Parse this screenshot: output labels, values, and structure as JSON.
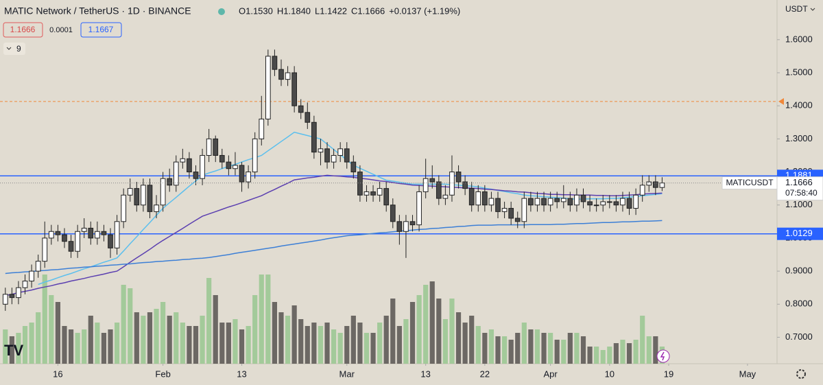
{
  "chart_data": {
    "type": "candlestick",
    "title": "MATIC Network / TetherUS · 1D · BINANCE",
    "header_values": [
      {
        "value": 1.153,
        "label": "O1.1530"
      },
      {
        "value": 1.184,
        "label": "H1.1840"
      },
      {
        "value": 1.1422,
        "label": "L1.1422"
      },
      {
        "value": 1.1666,
        "label": "C1.1666"
      },
      {
        "value": 0.0137,
        "label": "+0.0137 (+1.19%)"
      }
    ],
    "bid": 1.1666,
    "spread": 0.0001,
    "ask": 1.1667,
    "indicator_count": 9,
    "currency": "USDT",
    "symbol": "MATICUSDT",
    "last_price": 1.1666,
    "countdown": "07:58:40",
    "ylim": [
      0.62,
      1.72
    ],
    "yticks": [
      {
        "value": 0.7,
        "label": "0.7000"
      },
      {
        "value": 0.8,
        "label": "0.8000"
      },
      {
        "value": 0.9,
        "label": "0.9000"
      },
      {
        "value": 1.0,
        "label": "1.0000"
      },
      {
        "value": 1.1,
        "label": "1.1000"
      },
      {
        "value": 1.2,
        "label": "1.2000"
      },
      {
        "value": 1.3,
        "label": "1.3000"
      },
      {
        "value": 1.4,
        "label": "1.4000"
      },
      {
        "value": 1.5,
        "label": "1.5000"
      },
      {
        "value": 1.6,
        "label": "1.6000"
      }
    ],
    "grid": false,
    "up_color": "#ffffff",
    "down_color": "#4a4a4a",
    "volume_up_color": "#9cc893",
    "volume_down_color": "#5f5b58",
    "hlines": [
      {
        "value": 1.1881,
        "color": "#2962ff"
      },
      {
        "value": 1.0129,
        "color": "#2962ff"
      }
    ],
    "alert_line": {
      "value": 1.413,
      "color": "#f0883a"
    },
    "categories": [
      null,
      null,
      null,
      null,
      null,
      null,
      null,
      null,
      "16",
      null,
      null,
      null,
      null,
      null,
      null,
      null,
      null,
      null,
      null,
      null,
      null,
      null,
      null,
      null,
      "Feb",
      null,
      null,
      null,
      null,
      null,
      null,
      null,
      null,
      null,
      null,
      null,
      "13",
      null,
      null,
      null,
      null,
      null,
      null,
      null,
      null,
      null,
      null,
      null,
      null,
      null,
      null,
      null,
      "Mar",
      null,
      null,
      null,
      null,
      null,
      null,
      null,
      null,
      null,
      null,
      null,
      "13",
      null,
      null,
      null,
      null,
      null,
      null,
      null,
      null,
      "22",
      null,
      null,
      null,
      null,
      null,
      null,
      null,
      null,
      null,
      "Apr",
      null,
      null,
      null,
      null,
      null,
      null,
      null,
      null,
      "10",
      null,
      null,
      null,
      null,
      null,
      null,
      null,
      null,
      "19",
      null,
      null,
      null,
      null,
      null,
      null,
      null,
      null,
      null,
      null,
      null,
      "May",
      null,
      null,
      null,
      null
    ],
    "open": [
      0.8,
      0.83,
      0.82,
      0.85,
      0.87,
      0.9,
      0.93,
      1.0,
      1.02,
      1.01,
      0.99,
      0.96,
      1.02,
      1.03,
      1.0,
      1.02,
      1.01,
      0.97,
      1.05,
      1.13,
      1.15,
      1.1,
      1.16,
      1.08,
      1.1,
      1.18,
      1.16,
      1.23,
      1.24,
      1.2,
      1.18,
      1.25,
      1.3,
      1.25,
      1.23,
      1.21,
      1.22,
      1.17,
      1.2,
      1.3,
      1.36,
      1.55,
      1.51,
      1.48,
      1.5,
      1.4,
      1.38,
      1.35,
      1.26,
      1.27,
      1.23,
      1.25,
      1.27,
      1.23,
      1.2,
      1.13,
      1.14,
      1.13,
      1.15,
      1.1,
      1.05,
      1.02,
      1.05,
      1.04,
      1.14,
      1.18,
      1.17,
      1.12,
      1.13,
      1.2,
      1.17,
      1.15,
      1.1,
      1.14,
      1.1,
      1.12,
      1.08,
      1.09,
      1.06,
      1.05,
      1.12,
      1.1,
      1.12,
      1.1,
      1.12,
      1.11,
      1.12,
      1.1,
      1.13,
      1.11,
      1.1,
      1.1,
      1.11,
      1.11,
      1.1,
      1.12,
      1.09,
      1.13,
      1.16,
      1.17,
      1.153,
      null,
      null,
      null,
      null,
      null,
      null,
      null,
      null,
      null,
      null,
      null,
      null,
      null,
      null,
      null,
      null,
      null
    ],
    "high": [
      0.85,
      0.85,
      0.87,
      0.89,
      0.92,
      0.95,
      1.05,
      1.04,
      1.04,
      1.03,
      1.01,
      1.04,
      1.06,
      1.05,
      1.05,
      1.04,
      1.03,
      1.07,
      1.15,
      1.18,
      1.17,
      1.18,
      1.18,
      1.13,
      1.2,
      1.21,
      1.25,
      1.27,
      1.26,
      1.22,
      1.27,
      1.33,
      1.31,
      1.27,
      1.25,
      1.26,
      1.23,
      1.22,
      1.32,
      1.43,
      1.57,
      1.57,
      1.54,
      1.52,
      1.52,
      1.42,
      1.41,
      1.37,
      1.3,
      1.29,
      1.27,
      1.29,
      1.29,
      1.25,
      1.22,
      1.16,
      1.16,
      1.17,
      1.17,
      1.12,
      1.07,
      1.07,
      1.07,
      1.16,
      1.24,
      1.22,
      1.19,
      1.16,
      1.25,
      1.22,
      1.19,
      1.17,
      1.16,
      1.16,
      1.14,
      1.14,
      1.11,
      1.11,
      1.08,
      1.14,
      1.14,
      1.14,
      1.14,
      1.14,
      1.14,
      1.16,
      1.14,
      1.15,
      1.15,
      1.13,
      1.12,
      1.13,
      1.13,
      1.13,
      1.14,
      1.14,
      1.15,
      1.19,
      1.19,
      1.19,
      1.184,
      null,
      null,
      null,
      null,
      null,
      null,
      null,
      null,
      null,
      null,
      null,
      null,
      null,
      null,
      null,
      null,
      null
    ],
    "low": [
      0.78,
      0.8,
      0.8,
      0.83,
      0.85,
      0.88,
      0.91,
      0.98,
      0.99,
      0.97,
      0.94,
      0.94,
      1.0,
      0.98,
      0.98,
      0.99,
      0.94,
      0.95,
      1.03,
      1.11,
      1.08,
      1.08,
      1.06,
      1.06,
      1.08,
      1.14,
      1.14,
      1.21,
      1.18,
      1.16,
      1.16,
      1.23,
      1.23,
      1.21,
      1.19,
      1.19,
      1.14,
      1.15,
      1.18,
      1.28,
      1.34,
      1.49,
      1.46,
      1.46,
      1.38,
      1.36,
      1.33,
      1.24,
      1.22,
      1.21,
      1.21,
      1.23,
      1.21,
      1.18,
      1.11,
      1.11,
      1.11,
      1.11,
      1.08,
      1.03,
      0.98,
      0.94,
      1.02,
      1.02,
      1.12,
      1.15,
      1.1,
      1.1,
      1.11,
      1.15,
      1.13,
      1.08,
      1.08,
      1.08,
      1.08,
      1.06,
      1.06,
      1.04,
      1.03,
      1.03,
      1.08,
      1.08,
      1.08,
      1.08,
      1.09,
      1.09,
      1.08,
      1.08,
      1.09,
      1.08,
      1.08,
      1.08,
      1.09,
      1.08,
      1.08,
      1.07,
      1.07,
      1.11,
      1.14,
      1.13,
      1.1422,
      null,
      null,
      null,
      null,
      null,
      null,
      null,
      null,
      null,
      null,
      null,
      null,
      null,
      null,
      null,
      null,
      null
    ],
    "close": [
      0.83,
      0.82,
      0.85,
      0.87,
      0.9,
      0.93,
      1.0,
      1.02,
      1.01,
      0.99,
      0.96,
      1.02,
      1.03,
      1.0,
      1.02,
      1.01,
      0.97,
      1.05,
      1.13,
      1.15,
      1.1,
      1.16,
      1.08,
      1.1,
      1.18,
      1.16,
      1.23,
      1.24,
      1.2,
      1.18,
      1.25,
      1.3,
      1.25,
      1.23,
      1.21,
      1.22,
      1.17,
      1.2,
      1.3,
      1.36,
      1.55,
      1.51,
      1.48,
      1.5,
      1.4,
      1.38,
      1.35,
      1.26,
      1.27,
      1.23,
      1.25,
      1.27,
      1.23,
      1.2,
      1.13,
      1.14,
      1.13,
      1.15,
      1.1,
      1.05,
      1.02,
      1.05,
      1.04,
      1.14,
      1.18,
      1.17,
      1.12,
      1.13,
      1.2,
      1.17,
      1.15,
      1.1,
      1.14,
      1.1,
      1.12,
      1.08,
      1.09,
      1.06,
      1.05,
      1.12,
      1.1,
      1.12,
      1.1,
      1.12,
      1.11,
      1.12,
      1.1,
      1.13,
      1.11,
      1.1,
      1.1,
      1.11,
      1.11,
      1.1,
      1.12,
      1.09,
      1.13,
      1.16,
      1.17,
      1.153,
      1.1666,
      null,
      null,
      null,
      null,
      null,
      null,
      null,
      null,
      null,
      null,
      null,
      null,
      null,
      null,
      null,
      null,
      null
    ],
    "volume": [
      50,
      40,
      45,
      55,
      60,
      75,
      130,
      100,
      90,
      55,
      50,
      45,
      50,
      70,
      60,
      45,
      50,
      60,
      115,
      110,
      75,
      70,
      75,
      80,
      90,
      70,
      75,
      60,
      55,
      55,
      70,
      125,
      100,
      60,
      60,
      65,
      50,
      55,
      100,
      130,
      130,
      90,
      75,
      70,
      85,
      65,
      55,
      60,
      55,
      60,
      50,
      45,
      55,
      70,
      60,
      45,
      45,
      60,
      70,
      95,
      55,
      65,
      90,
      100,
      115,
      120,
      95,
      65,
      95,
      75,
      60,
      70,
      55,
      45,
      50,
      40,
      40,
      35,
      45,
      60,
      50,
      50,
      45,
      45,
      35,
      35,
      45,
      45,
      40,
      25,
      25,
      20,
      25,
      30,
      35,
      30,
      35,
      70,
      40,
      40,
      25,
      null,
      null,
      null,
      null,
      null,
      null,
      null,
      null,
      null,
      null,
      null,
      null,
      null,
      null,
      null,
      null,
      null
    ],
    "moving_averages": [
      {
        "color": "#5bbfee",
        "values": [
          null,
          null,
          null,
          null,
          null,
          0.86,
          0.867,
          0.873,
          0.88,
          0.887,
          0.893,
          0.9,
          0.907,
          0.913,
          0.92,
          0.927,
          0.933,
          0.94,
          0.961,
          0.983,
          1.004,
          1.026,
          1.047,
          1.069,
          1.09,
          1.107,
          1.123,
          1.14,
          1.157,
          1.173,
          1.19,
          1.197,
          1.203,
          1.21,
          1.217,
          1.223,
          1.23,
          1.237,
          1.243,
          1.25,
          1.264,
          1.278,
          1.292,
          1.306,
          1.32,
          1.315,
          1.31,
          1.305,
          1.3,
          1.284,
          1.268,
          1.252,
          1.236,
          1.22,
          1.211,
          1.202,
          1.193,
          1.184,
          1.175,
          1.172,
          1.169,
          1.166,
          1.163,
          1.163,
          1.163,
          1.163,
          1.163,
          1.163,
          1.161,
          1.16,
          1.158,
          1.157,
          1.155,
          1.151,
          1.148,
          1.144,
          1.141,
          1.137,
          1.134,
          1.13,
          1.128,
          1.127,
          1.125,
          1.124,
          1.122,
          1.121,
          1.119,
          1.118,
          1.118,
          1.119,
          1.119,
          1.119,
          1.12,
          1.12,
          1.122,
          1.124,
          1.126,
          1.128,
          1.13,
          1.132,
          1.134,
          null,
          null,
          null,
          null,
          null,
          null,
          null,
          null,
          null,
          null,
          null,
          null,
          null,
          null,
          null,
          null,
          null
        ]
      },
      {
        "color": "#5b3fb0",
        "values": [
          0.826,
          0.83,
          0.835,
          0.839,
          0.843,
          0.848,
          0.852,
          0.856,
          0.861,
          0.865,
          0.87,
          0.874,
          0.878,
          0.883,
          0.887,
          0.891,
          0.896,
          0.9,
          0.913,
          0.927,
          0.94,
          0.953,
          0.966,
          0.98,
          0.993,
          1.005,
          1.017,
          1.029,
          1.042,
          1.054,
          1.066,
          1.073,
          1.08,
          1.087,
          1.094,
          1.1,
          1.107,
          1.114,
          1.121,
          1.128,
          1.138,
          1.147,
          1.157,
          1.166,
          1.176,
          1.179,
          1.182,
          1.184,
          1.187,
          1.19,
          1.188,
          1.187,
          1.185,
          1.184,
          1.181,
          1.179,
          1.176,
          1.173,
          1.171,
          1.168,
          1.165,
          1.163,
          1.16,
          1.159,
          1.158,
          1.157,
          1.156,
          1.155,
          1.154,
          1.153,
          1.152,
          1.151,
          1.15,
          1.148,
          1.147,
          1.145,
          1.143,
          1.142,
          1.14,
          1.139,
          1.137,
          1.135,
          1.134,
          1.132,
          1.132,
          1.131,
          1.131,
          1.13,
          1.13,
          1.13,
          1.129,
          1.129,
          1.128,
          1.128,
          1.129,
          1.13,
          1.131,
          1.133,
          1.134,
          1.135,
          1.136,
          null,
          null,
          null,
          null,
          null,
          null,
          null,
          null,
          null,
          null,
          null,
          null,
          null,
          null,
          null,
          null,
          null
        ]
      },
      {
        "color": "#3c7fd6",
        "values": [
          0.893,
          0.895,
          0.896,
          0.898,
          0.899,
          0.901,
          0.902,
          0.904,
          0.905,
          0.907,
          0.909,
          0.91,
          0.912,
          0.913,
          0.915,
          0.916,
          0.918,
          0.919,
          0.921,
          0.922,
          0.924,
          0.926,
          0.927,
          0.929,
          0.93,
          0.932,
          0.933,
          0.935,
          0.936,
          0.938,
          0.939,
          0.941,
          0.944,
          0.947,
          0.95,
          0.954,
          0.957,
          0.96,
          0.963,
          0.966,
          0.969,
          0.972,
          0.976,
          0.979,
          0.982,
          0.985,
          0.988,
          0.991,
          0.994,
          0.998,
          1.001,
          1.004,
          1.007,
          1.009,
          1.01,
          1.012,
          1.014,
          1.016,
          1.017,
          1.019,
          1.021,
          1.022,
          1.024,
          1.026,
          1.027,
          1.029,
          1.03,
          1.032,
          1.033,
          1.035,
          1.036,
          1.038,
          1.039,
          1.039,
          1.039,
          1.04,
          1.04,
          1.04,
          1.04,
          1.04,
          1.041,
          1.041,
          1.041,
          1.041,
          1.042,
          1.042,
          1.043,
          1.044,
          1.044,
          1.045,
          1.046,
          1.047,
          1.047,
          1.048,
          1.049,
          1.049,
          1.05,
          1.051,
          1.051,
          1.052,
          1.053,
          null,
          null,
          null,
          null,
          null,
          null,
          null,
          null,
          null,
          null,
          null,
          null,
          null,
          null,
          null,
          null,
          null
        ]
      }
    ]
  }
}
